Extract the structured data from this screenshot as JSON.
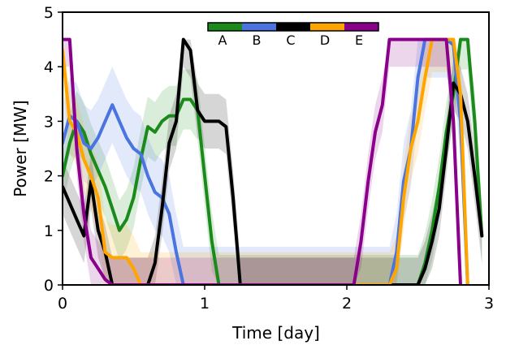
{
  "chart_data": {
    "type": "line",
    "title": "",
    "xlabel": "Time [day]",
    "ylabel": "Power [MW]",
    "xlim": [
      0,
      3
    ],
    "ylim": [
      0,
      5
    ],
    "xticks": [
      0,
      1,
      2,
      3
    ],
    "yticks": [
      0,
      1,
      2,
      3,
      4,
      5
    ],
    "xtick_labels": [
      "0",
      "1",
      "2",
      "3"
    ],
    "ytick_labels": [
      "0",
      "1",
      "2",
      "3",
      "4",
      "5"
    ],
    "grid": false,
    "legend": {
      "placement": "top-center",
      "orientation": "horizontal-colorbar"
    },
    "series": [
      {
        "name": "A",
        "color": "#1a8a1a",
        "x": [
          0,
          0.05,
          0.1,
          0.15,
          0.2,
          0.25,
          0.3,
          0.35,
          0.4,
          0.45,
          0.5,
          0.55,
          0.6,
          0.65,
          0.7,
          0.75,
          0.8,
          0.85,
          0.9,
          0.95,
          1.0,
          1.05,
          1.1,
          1.15,
          1.2,
          1.5,
          1.9,
          2.0,
          2.1,
          2.2,
          2.3,
          2.4,
          2.45,
          2.5,
          2.55,
          2.6,
          2.65,
          2.7,
          2.75,
          2.8,
          2.85,
          2.9,
          2.95
        ],
        "y": [
          2.0,
          2.6,
          3.0,
          2.8,
          2.4,
          2.1,
          1.8,
          1.4,
          1.0,
          1.2,
          1.6,
          2.3,
          2.9,
          2.8,
          3.0,
          3.1,
          3.1,
          3.4,
          3.4,
          3.2,
          2.0,
          0.8,
          0.0,
          0.0,
          0.0,
          0.0,
          0.0,
          0.0,
          0.0,
          0.0,
          0.0,
          0.0,
          0.0,
          0.0,
          0.4,
          1.0,
          1.8,
          2.8,
          3.5,
          4.5,
          4.5,
          3.0,
          0.9
        ],
        "band": 0.55
      },
      {
        "name": "B",
        "color": "#4a74e0",
        "x": [
          0,
          0.05,
          0.1,
          0.15,
          0.2,
          0.25,
          0.3,
          0.35,
          0.4,
          0.45,
          0.5,
          0.55,
          0.6,
          0.65,
          0.7,
          0.75,
          0.8,
          0.85,
          0.9,
          1.2,
          2.0,
          2.1,
          2.2,
          2.3,
          2.35,
          2.4,
          2.45,
          2.5,
          2.55,
          2.6,
          2.65,
          2.7,
          2.75,
          2.8,
          2.85
        ],
        "y": [
          2.6,
          3.1,
          3.0,
          2.6,
          2.5,
          2.7,
          3.0,
          3.3,
          3.0,
          2.7,
          2.5,
          2.4,
          2.0,
          1.7,
          1.6,
          1.3,
          0.6,
          0.0,
          0.0,
          0.0,
          0.0,
          0.0,
          0.0,
          0.0,
          0.6,
          1.9,
          2.5,
          3.8,
          4.5,
          4.5,
          4.5,
          4.5,
          4.4,
          3.0,
          0.0
        ],
        "band": 0.7
      },
      {
        "name": "C",
        "color": "#000000",
        "x": [
          0,
          0.05,
          0.1,
          0.15,
          0.2,
          0.25,
          0.3,
          0.35,
          0.4,
          0.45,
          0.5,
          0.55,
          0.6,
          0.65,
          0.7,
          0.75,
          0.8,
          0.85,
          0.9,
          0.95,
          1.0,
          1.05,
          1.1,
          1.15,
          1.2,
          1.25,
          1.5,
          2.5,
          2.55,
          2.6,
          2.65,
          2.7,
          2.75,
          2.8,
          2.85,
          2.9,
          2.95
        ],
        "y": [
          1.8,
          1.5,
          1.2,
          0.9,
          1.9,
          1.0,
          0.6,
          0.0,
          0.0,
          0.0,
          0.0,
          0.0,
          0.0,
          0.4,
          1.4,
          2.6,
          3.0,
          4.5,
          4.3,
          3.2,
          3.0,
          3.0,
          3.0,
          2.9,
          1.6,
          0.0,
          0.0,
          0.0,
          0.3,
          0.8,
          1.4,
          2.5,
          3.7,
          3.5,
          3.0,
          2.0,
          0.9
        ],
        "band": 0.5
      },
      {
        "name": "D",
        "color": "#ffa500",
        "x": [
          0,
          0.05,
          0.1,
          0.15,
          0.2,
          0.25,
          0.3,
          0.35,
          0.4,
          0.45,
          0.5,
          0.55,
          0.6,
          0.65,
          0.7,
          2.2,
          2.3,
          2.35,
          2.4,
          2.45,
          2.5,
          2.55,
          2.6,
          2.65,
          2.7,
          2.75,
          2.8,
          2.85
        ],
        "y": [
          4.3,
          3.0,
          2.8,
          2.3,
          2.0,
          1.6,
          0.6,
          0.5,
          0.5,
          0.5,
          0.3,
          0.0,
          0.0,
          0.0,
          0.0,
          0.0,
          0.0,
          0.3,
          1.6,
          2.5,
          3.0,
          3.8,
          4.5,
          4.5,
          4.5,
          4.5,
          3.5,
          0.0
        ],
        "band": 0.6
      },
      {
        "name": "E",
        "color": "#8b008b",
        "x": [
          0,
          0.05,
          0.1,
          0.15,
          0.2,
          0.25,
          0.3,
          0.35,
          0.4,
          0.45,
          0.5,
          2.0,
          2.05,
          2.1,
          2.15,
          2.2,
          2.25,
          2.3,
          2.35,
          2.4,
          2.45,
          2.5,
          2.55,
          2.6,
          2.65,
          2.7,
          2.75,
          2.8
        ],
        "y": [
          4.5,
          4.5,
          2.5,
          1.3,
          0.5,
          0.3,
          0.1,
          0.0,
          0.0,
          0.0,
          0.0,
          0.0,
          0.0,
          0.8,
          1.9,
          2.8,
          3.3,
          4.5,
          4.5,
          4.5,
          4.5,
          4.5,
          4.5,
          4.5,
          4.5,
          4.5,
          3.0,
          0.0
        ],
        "band": 0.5
      }
    ]
  }
}
